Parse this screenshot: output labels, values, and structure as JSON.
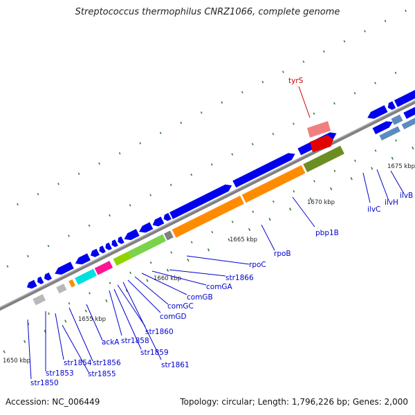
{
  "title": "Streptococcus thermophilus CNRZ1066, complete genome",
  "footer": {
    "accession": "Accession: NC_006449",
    "summary": "Topology: circular; Length: 1,796,226 bp; Genes: 2,000"
  },
  "colors": {
    "backbone": "#808080",
    "tick": "#2e7d32",
    "label_line": "#0000cc",
    "label_text": "#0000cc",
    "highlight_line": "#cc0000",
    "highlight_text": "#cc0000"
  },
  "kbp_labels": [
    "1650 kbp",
    "1655 kbp",
    "1660 kbp",
    "1665 kbp",
    "1670 kbp",
    "1675 kbp"
  ],
  "gene_labels": [
    "str1850",
    "str1853",
    "str1854",
    "str1855",
    "str1856",
    "ackA",
    "str1858",
    "str1859",
    "str1860",
    "str1861",
    "comGD",
    "comGC",
    "comGB",
    "comGA",
    "str1866",
    "rpoC",
    "rpoB",
    "pbp1B",
    "ilvC",
    "ilvH",
    "ilvB",
    "tyrS"
  ]
}
